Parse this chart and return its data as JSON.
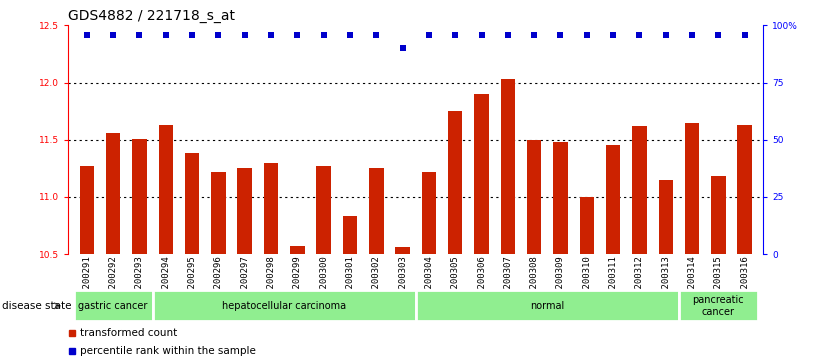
{
  "title": "GDS4882 / 221718_s_at",
  "categories": [
    "GSM1200291",
    "GSM1200292",
    "GSM1200293",
    "GSM1200294",
    "GSM1200295",
    "GSM1200296",
    "GSM1200297",
    "GSM1200298",
    "GSM1200299",
    "GSM1200300",
    "GSM1200301",
    "GSM1200302",
    "GSM1200303",
    "GSM1200304",
    "GSM1200305",
    "GSM1200306",
    "GSM1200307",
    "GSM1200308",
    "GSM1200309",
    "GSM1200310",
    "GSM1200311",
    "GSM1200312",
    "GSM1200313",
    "GSM1200314",
    "GSM1200315",
    "GSM1200316"
  ],
  "bar_values": [
    11.27,
    11.56,
    11.51,
    11.63,
    11.38,
    11.22,
    11.25,
    11.3,
    10.57,
    11.27,
    10.83,
    11.25,
    10.56,
    11.22,
    11.75,
    11.9,
    12.03,
    11.5,
    11.48,
    11.0,
    11.45,
    11.62,
    11.15,
    11.65,
    11.18,
    11.63
  ],
  "percentile_values": [
    12.42,
    12.42,
    12.42,
    12.42,
    12.42,
    12.42,
    12.42,
    12.42,
    12.42,
    12.42,
    12.42,
    12.42,
    12.3,
    12.42,
    12.42,
    12.42,
    12.42,
    12.42,
    12.42,
    12.42,
    12.42,
    12.42,
    12.42,
    12.42,
    12.42,
    12.42
  ],
  "ylim": [
    10.5,
    12.5
  ],
  "yticks": [
    10.5,
    11.0,
    11.5,
    12.0,
    12.5
  ],
  "right_yticks": [
    0,
    25,
    50,
    75,
    100
  ],
  "right_ytick_labels": [
    "0",
    "25",
    "50",
    "75",
    "100%"
  ],
  "bar_color": "#cc2200",
  "dot_color": "#0000cc",
  "disease_groups": [
    {
      "label": "gastric cancer",
      "start": 0,
      "end": 3
    },
    {
      "label": "hepatocellular carcinoma",
      "start": 3,
      "end": 13
    },
    {
      "label": "normal",
      "start": 13,
      "end": 23
    },
    {
      "label": "pancreatic\ncancer",
      "start": 23,
      "end": 26
    }
  ],
  "group_color": "#90ee90",
  "group_border_color": "#ffffff",
  "xtick_bg_color": "#c8c8c8",
  "legend_items": [
    {
      "label": "transformed count",
      "color": "#cc2200"
    },
    {
      "label": "percentile rank within the sample",
      "color": "#0000cc"
    }
  ],
  "title_fontsize": 10,
  "tick_fontsize": 6.5,
  "bar_width": 0.55
}
